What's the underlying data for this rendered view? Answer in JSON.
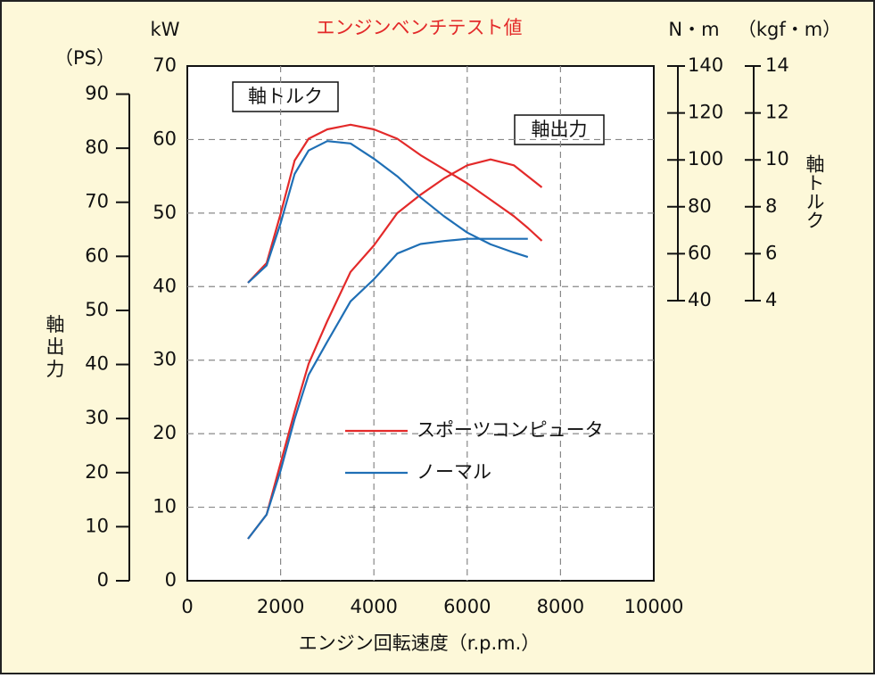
{
  "chart_data": {
    "type": "line",
    "title": "エンジンベンチテスト値",
    "xlabel": "エンジン回転速度（r.p.m.）",
    "ylabel": "軸出力",
    "y2label": "軸トルク",
    "annotations": [
      "軸トルク",
      "軸出力"
    ],
    "x": [
      1300,
      1700,
      2000,
      2300,
      2600,
      3000,
      3500,
      4000,
      4500,
      5000,
      5500,
      6000,
      6500,
      7000,
      7300,
      7600
    ],
    "xlim": [
      0,
      10000
    ],
    "xticks": [
      0,
      2000,
      4000,
      6000,
      8000,
      10000
    ],
    "ylim": [
      0,
      70
    ],
    "yticks": [
      0,
      10,
      20,
      30,
      40,
      50,
      60,
      70
    ],
    "yunit": "kW",
    "ps_axis": {
      "label": "（PS）",
      "lim": [
        0,
        95.2
      ],
      "ticks": [
        0,
        10,
        20,
        30,
        40,
        50,
        60,
        70,
        80,
        90
      ]
    },
    "y2lim": [
      40,
      140
    ],
    "y2ticks": [
      40,
      60,
      80,
      100,
      120,
      140
    ],
    "y2unit": "N・m",
    "kgf_axis": {
      "label": "（kgf・m）",
      "lim": [
        4,
        14
      ],
      "ticks": [
        4,
        6,
        8,
        10,
        12,
        14
      ]
    },
    "grid": true,
    "series": [
      {
        "name": "スポーツコンピュータ",
        "color": "#e32a2a",
        "values": [
          5.7,
          9,
          16,
          23,
          29.5,
          35.3,
          42,
          45.6,
          50,
          52.5,
          54.7,
          56.5,
          57.3,
          56.5,
          55,
          53.5
        ],
        "torque_values": [
          47.6,
          56,
          77,
          99.7,
          109,
          113,
          115,
          113,
          109,
          102,
          96,
          90,
          83,
          76,
          71,
          65.5
        ]
      },
      {
        "name": "ノーマル",
        "color": "#1f6fb5",
        "values": [
          5.7,
          9,
          15,
          22,
          28,
          32.5,
          38,
          41,
          44.5,
          45.8,
          46.2,
          46.5,
          46.5,
          46.5,
          46.5,
          null
        ],
        "torque_values": [
          47.6,
          55,
          73,
          94,
          104,
          108,
          107,
          100.5,
          93,
          84,
          76,
          69,
          64,
          60.5,
          58.6,
          null
        ]
      }
    ]
  }
}
